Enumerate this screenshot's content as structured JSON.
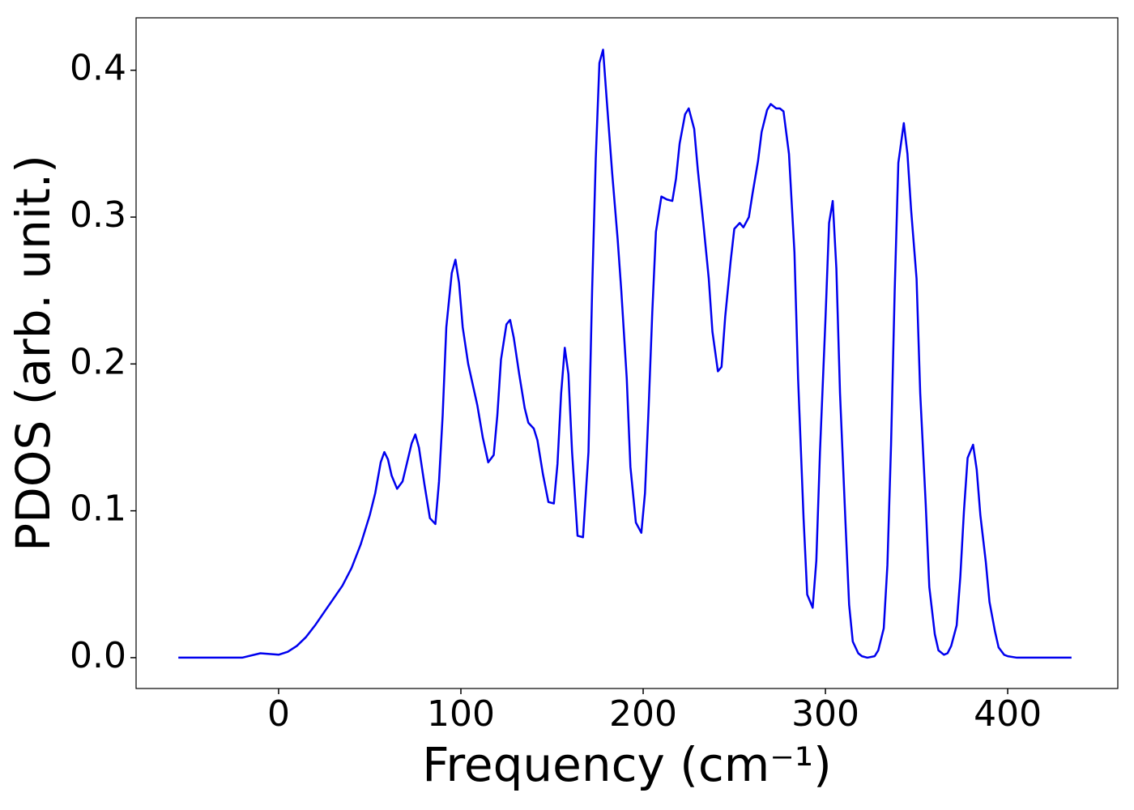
{
  "chart_data": {
    "type": "line",
    "xlabel": "Frequency (cm⁻¹)",
    "ylabel": "PDOS (arb. unit.)",
    "x": [
      -55,
      -20,
      -10,
      0,
      5,
      10,
      15,
      20,
      25,
      30,
      35,
      40,
      45,
      50,
      53,
      56,
      58,
      60,
      62,
      65,
      68,
      73,
      75,
      77,
      80,
      83,
      86,
      88,
      90,
      92,
      95,
      97,
      99,
      101,
      104,
      109,
      112,
      115,
      118,
      120,
      122,
      125,
      127,
      129,
      132,
      135,
      137,
      140,
      142,
      145,
      148,
      151,
      153,
      155,
      157,
      159,
      161,
      164,
      167,
      170,
      172,
      174,
      176,
      178,
      180,
      183,
      186,
      188,
      191,
      193,
      196,
      199,
      201,
      203,
      205,
      207,
      210,
      213,
      216,
      218,
      220,
      223,
      225,
      228,
      230,
      233,
      236,
      238,
      241,
      243,
      245,
      248,
      250,
      253,
      255,
      258,
      260,
      263,
      265,
      268,
      270,
      273,
      275,
      277,
      280,
      283,
      285,
      288,
      290,
      293,
      295,
      297,
      300,
      302,
      304,
      306,
      308,
      311,
      313,
      315,
      318,
      320,
      323,
      327,
      329,
      332,
      334,
      336,
      338,
      340,
      343,
      345,
      347,
      350,
      352,
      355,
      357,
      360,
      362,
      365,
      367,
      369,
      372,
      374,
      376,
      378,
      381,
      383,
      385,
      388,
      390,
      393,
      395,
      398,
      400,
      405,
      435
    ],
    "series": [
      {
        "color": "#0000ee",
        "values": [
          0,
          0,
          0.003,
          0.002,
          0.004,
          0.008,
          0.014,
          0.022,
          0.031,
          0.04,
          0.049,
          0.061,
          0.077,
          0.097,
          0.112,
          0.133,
          0.14,
          0.135,
          0.124,
          0.115,
          0.12,
          0.146,
          0.152,
          0.143,
          0.118,
          0.095,
          0.091,
          0.12,
          0.165,
          0.225,
          0.262,
          0.271,
          0.255,
          0.225,
          0.2,
          0.172,
          0.15,
          0.133,
          0.138,
          0.165,
          0.203,
          0.227,
          0.23,
          0.218,
          0.193,
          0.17,
          0.16,
          0.156,
          0.148,
          0.125,
          0.106,
          0.105,
          0.132,
          0.18,
          0.211,
          0.193,
          0.14,
          0.083,
          0.082,
          0.14,
          0.25,
          0.34,
          0.405,
          0.414,
          0.38,
          0.33,
          0.285,
          0.25,
          0.19,
          0.13,
          0.092,
          0.085,
          0.112,
          0.17,
          0.235,
          0.29,
          0.314,
          0.312,
          0.311,
          0.326,
          0.35,
          0.37,
          0.374,
          0.36,
          0.332,
          0.296,
          0.258,
          0.222,
          0.195,
          0.198,
          0.232,
          0.27,
          0.292,
          0.296,
          0.293,
          0.3,
          0.316,
          0.338,
          0.358,
          0.373,
          0.377,
          0.374,
          0.374,
          0.372,
          0.343,
          0.276,
          0.19,
          0.095,
          0.043,
          0.034,
          0.066,
          0.14,
          0.23,
          0.296,
          0.311,
          0.265,
          0.18,
          0.092,
          0.036,
          0.011,
          0.003,
          0.001,
          0,
          0.001,
          0.005,
          0.02,
          0.063,
          0.145,
          0.25,
          0.337,
          0.364,
          0.343,
          0.305,
          0.258,
          0.18,
          0.105,
          0.048,
          0.016,
          0.005,
          0.002,
          0.003,
          0.008,
          0.022,
          0.055,
          0.1,
          0.136,
          0.145,
          0.128,
          0.097,
          0.065,
          0.038,
          0.018,
          0.007,
          0.002,
          0.001,
          0,
          0
        ]
      }
    ],
    "xlim": [
      -78.2,
      460.4
    ],
    "ylim": [
      -0.021,
      0.4357
    ],
    "xticks": [
      0,
      100,
      200,
      300,
      400
    ],
    "yticks": [
      {
        "value": 0,
        "label": "0.0"
      },
      0.1,
      0.2,
      0.3,
      0.4
    ],
    "grid": false
  }
}
